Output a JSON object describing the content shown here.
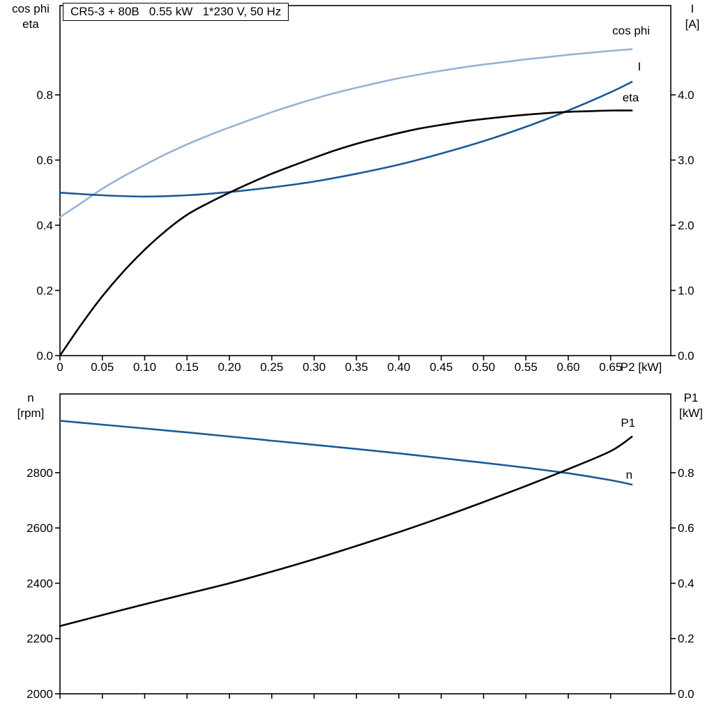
{
  "title_box": "CR5-3 + 80B   0.55 kW   1*230 V, 50 Hz",
  "colors": {
    "light_blue": "#97b3d5",
    "dark_blue": "#1a5a96",
    "black": "#000000",
    "axis": "#000000",
    "background": "#ffffff"
  },
  "axis_titles": {
    "top_left": {
      "line1": "cos phi",
      "line2": "eta"
    },
    "top_right": {
      "line1": "I",
      "line2": "[A]"
    },
    "bottom_left": {
      "line1": "n",
      "line2": "[rpm]"
    },
    "bottom_right": {
      "line1": "P1",
      "line2": "[kW]"
    }
  },
  "chart_data": [
    {
      "type": "line",
      "panel": "top",
      "name": "motor-electrical-curves",
      "x_axis": {
        "min": 0,
        "max": 0.721,
        "ticks": [
          0,
          0.05,
          0.1,
          0.15,
          0.2,
          0.25,
          0.3,
          0.35,
          0.4,
          0.45,
          0.5,
          0.55,
          0.6,
          0.65
        ],
        "tick_labels": [
          "0",
          "0.05",
          "0.10",
          "0.15",
          "0.20",
          "0.25",
          "0.30",
          "0.35",
          "0.40",
          "0.45",
          "0.50",
          "0.55",
          "0.60",
          "0.65"
        ],
        "unit_label": "P2 [kW]",
        "show_labels": true
      },
      "y_left": {
        "min": 0,
        "max": 1.074,
        "ticks": [
          0,
          0.2,
          0.4,
          0.6,
          0.8
        ],
        "labels": [
          "0.0",
          "0.2",
          "0.4",
          "0.6",
          "0.8"
        ]
      },
      "y_right": {
        "min": 0,
        "max": 5.37,
        "ticks": [
          0,
          1,
          2,
          3,
          4
        ],
        "labels": [
          "0.0",
          "1.0",
          "2.0",
          "3.0",
          "4.0"
        ]
      },
      "series": [
        {
          "name": "cos phi",
          "axis": "left",
          "color": "light_blue",
          "x": [
            0,
            0.025,
            0.05,
            0.075,
            0.1,
            0.125,
            0.15,
            0.175,
            0.2,
            0.225,
            0.25,
            0.275,
            0.3,
            0.325,
            0.35,
            0.375,
            0.4,
            0.425,
            0.45,
            0.475,
            0.5,
            0.525,
            0.55,
            0.575,
            0.6,
            0.625,
            0.65,
            0.675
          ],
          "y": [
            0.425,
            0.468,
            0.512,
            0.55,
            0.585,
            0.618,
            0.648,
            0.675,
            0.7,
            0.724,
            0.747,
            0.768,
            0.788,
            0.806,
            0.822,
            0.837,
            0.851,
            0.863,
            0.874,
            0.884,
            0.893,
            0.901,
            0.909,
            0.916,
            0.923,
            0.929,
            0.935,
            0.94
          ]
        },
        {
          "name": "I",
          "axis": "right",
          "color": "dark_blue",
          "x": [
            0,
            0.05,
            0.1,
            0.15,
            0.2,
            0.25,
            0.3,
            0.35,
            0.4,
            0.45,
            0.5,
            0.55,
            0.6,
            0.65,
            0.675
          ],
          "y": [
            2.5,
            2.46,
            2.44,
            2.46,
            2.51,
            2.58,
            2.67,
            2.79,
            2.93,
            3.1,
            3.29,
            3.51,
            3.76,
            4.04,
            4.2
          ]
        },
        {
          "name": "eta",
          "axis": "left",
          "color": "black",
          "x": [
            0,
            0.025,
            0.05,
            0.075,
            0.1,
            0.125,
            0.15,
            0.175,
            0.2,
            0.225,
            0.25,
            0.275,
            0.3,
            0.325,
            0.35,
            0.375,
            0.4,
            0.425,
            0.45,
            0.475,
            0.5,
            0.525,
            0.55,
            0.575,
            0.6,
            0.625,
            0.65,
            0.675
          ],
          "y": [
            0.0,
            0.095,
            0.182,
            0.258,
            0.325,
            0.383,
            0.432,
            0.468,
            0.5,
            0.53,
            0.558,
            0.583,
            0.607,
            0.63,
            0.65,
            0.667,
            0.683,
            0.697,
            0.708,
            0.718,
            0.726,
            0.733,
            0.739,
            0.744,
            0.748,
            0.75,
            0.752,
            0.752
          ]
        }
      ],
      "annotations": [
        {
          "text": "cos phi",
          "color": "light_blue",
          "axis": "left",
          "x": 0.652,
          "y": 0.985
        },
        {
          "text": "I",
          "color": "dark_blue",
          "axis": "left",
          "x": 0.682,
          "y": 0.875
        },
        {
          "text": "eta",
          "color": "black",
          "axis": "left",
          "x": 0.664,
          "y": 0.78
        }
      ]
    },
    {
      "type": "line",
      "panel": "bottom",
      "name": "speed-power-curves",
      "x_axis": {
        "min": 0,
        "max": 0.721,
        "ticks": [
          0,
          0.05,
          0.1,
          0.15,
          0.2,
          0.25,
          0.3,
          0.35,
          0.4,
          0.45,
          0.5,
          0.55,
          0.6,
          0.65
        ],
        "tick_labels": [],
        "unit_label": "",
        "show_labels": false
      },
      "y_left": {
        "min": 2000,
        "max": 3085,
        "ticks": [
          2000,
          2200,
          2400,
          2600,
          2800
        ],
        "labels": [
          "2000",
          "2200",
          "2400",
          "2600",
          "2800"
        ]
      },
      "y_right": {
        "min": 0,
        "max": 1.085,
        "ticks": [
          0,
          0.2,
          0.4,
          0.6,
          0.8
        ],
        "labels": [
          "0.0",
          "0.2",
          "0.4",
          "0.6",
          "0.8"
        ]
      },
      "series": [
        {
          "name": "n",
          "axis": "left",
          "color": "dark_blue",
          "x": [
            0,
            0.05,
            0.1,
            0.15,
            0.2,
            0.25,
            0.3,
            0.35,
            0.4,
            0.45,
            0.5,
            0.55,
            0.6,
            0.65,
            0.675
          ],
          "y": [
            2988,
            2974,
            2960,
            2946,
            2931,
            2916,
            2901,
            2886,
            2870,
            2853,
            2836,
            2818,
            2798,
            2773,
            2757
          ]
        },
        {
          "name": "P1",
          "axis": "right",
          "color": "black",
          "x": [
            0,
            0.05,
            0.1,
            0.15,
            0.2,
            0.25,
            0.3,
            0.35,
            0.4,
            0.45,
            0.5,
            0.55,
            0.6,
            0.65,
            0.675
          ],
          "y": [
            0.245,
            0.285,
            0.324,
            0.362,
            0.4,
            0.442,
            0.487,
            0.535,
            0.585,
            0.638,
            0.694,
            0.752,
            0.813,
            0.878,
            0.93
          ]
        }
      ],
      "annotations": [
        {
          "text": "P1",
          "color": "black",
          "axis": "right",
          "x": 0.662,
          "y": 0.967
        },
        {
          "text": "n",
          "color": "dark_blue",
          "axis": "left",
          "x": 0.668,
          "y": 2778
        }
      ]
    }
  ]
}
